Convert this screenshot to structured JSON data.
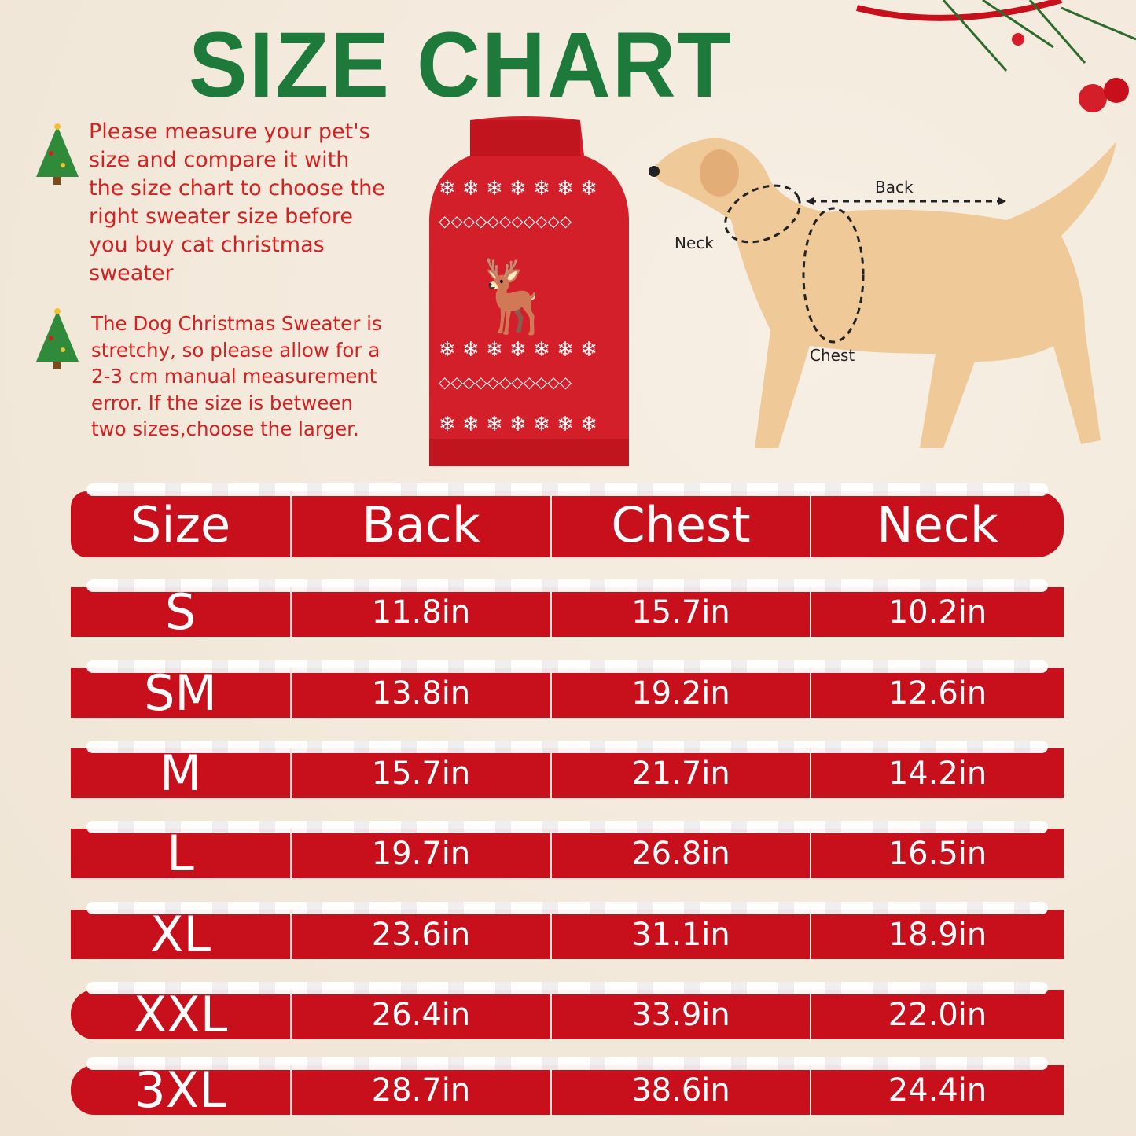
{
  "title": "SIZE CHART",
  "notes": [
    "Please measure your pet's size and compare it with the size chart to choose the right sweater size before you buy cat christmas sweater",
    "The Dog Christmas Sweater is stretchy, so please allow for a 2-3 cm manual measurement error. If the size is between two sizes,choose the larger."
  ],
  "diagram": {
    "back": "Back",
    "neck": "Neck",
    "chest": "Chest"
  },
  "table": {
    "headers": [
      "Size",
      "Back",
      "Chest",
      "Neck"
    ],
    "rows": [
      [
        "S",
        "11.8in",
        "15.7in",
        "10.2in"
      ],
      [
        "SM",
        "13.8in",
        "19.2in",
        "12.6in"
      ],
      [
        "M",
        "15.7in",
        "21.7in",
        "14.2in"
      ],
      [
        "L",
        "19.7in",
        "26.8in",
        "16.5in"
      ],
      [
        "XL",
        "23.6in",
        "31.1in",
        "18.9in"
      ],
      [
        "XXL",
        "26.4in",
        "33.9in",
        "22.0in"
      ],
      [
        "3XL",
        "28.7in",
        "38.6in",
        "24.4in"
      ]
    ]
  },
  "colors": {
    "title": "#1e7a3a",
    "note": "#d42020",
    "table_red": "#c8101c",
    "background": "#f3e9dc"
  }
}
